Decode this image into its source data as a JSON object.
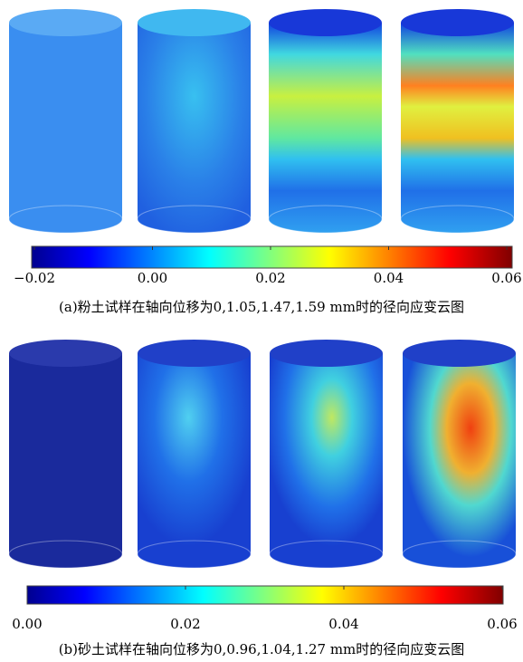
{
  "panels": [
    {
      "caption": "(a)粉土试样在轴向位移为0,1.05,1.47,1.59 mm时的径向应变云图",
      "colorbar": {
        "range": [
          -0.02,
          0.06
        ],
        "ticks": [
          {
            "value": -0.02,
            "label": "−0.02"
          },
          {
            "value": 0,
            "label": "0.00"
          },
          0.02,
          0.04,
          0.06
        ]
      }
    },
    {
      "caption": "(b)砂土试样在轴向位移为0,0.96,1.04,1.27 mm时的径向应变云图",
      "colorbar": {
        "range": [
          0,
          0.06
        ],
        "ticks": [
          {
            "value": 0,
            "label": "0.00"
          },
          0.02,
          0.04,
          0.06
        ]
      }
    }
  ]
}
